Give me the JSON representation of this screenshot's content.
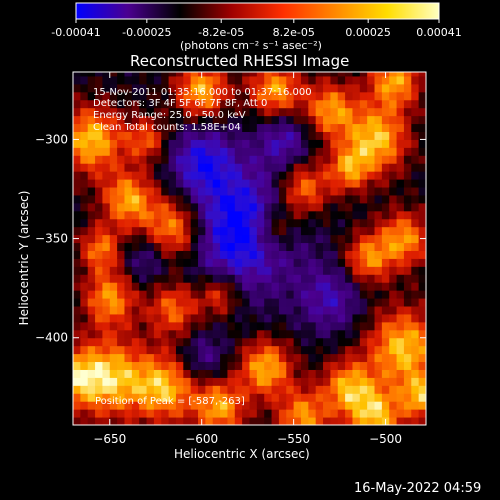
{
  "colorbar": {
    "tick_labels": [
      "-0.00041",
      "-0.00025",
      "-8.2e-05",
      "8.2e-05",
      "0.00025",
      "0.00041"
    ],
    "tick_values": [
      -0.00041,
      -0.00025,
      -8.2e-05,
      8.2e-05,
      0.00025,
      0.00041
    ],
    "range": [
      -0.00041,
      0.00041
    ],
    "units_label": "(photons cm⁻² s⁻¹ asec⁻²)",
    "gradient_colors": [
      "#0000ff",
      "#4b0090",
      "#000000",
      "#a00000",
      "#ff3000",
      "#ff8800",
      "#ffdd00",
      "#ffffc0"
    ]
  },
  "chart_data": {
    "type": "heatmap",
    "title": "Reconstructed RHESSI Image",
    "xlabel": "Heliocentric X (arcsec)",
    "ylabel": "Heliocentric Y (arcsec)",
    "xlim": [
      -670,
      -478
    ],
    "ylim": [
      -444,
      -266
    ],
    "xticks": [
      -650,
      -600,
      -550,
      -500
    ],
    "yticks": [
      -300,
      -350,
      -400
    ],
    "xtick_labels": [
      "−650",
      "−600",
      "−550",
      "−500"
    ],
    "ytick_labels": [
      "−300",
      "−350",
      "−400"
    ],
    "colorscale": [
      "#0000ff",
      "#3010d0",
      "#4b0090",
      "#300060",
      "#000000",
      "#8a0000",
      "#e02000",
      "#ff7000",
      "#ffc000",
      "#ffffd0"
    ],
    "peak_position": [
      -587,
      -263
    ],
    "annotations": [
      "15-Nov-2011 01:35:16.000 to 01:37:16.000",
      "Detectors: 3F 4F 5F 6F 7F 8F, Att 0",
      "Energy Range: 25.0 - 50.0 keV",
      "Clean    Total counts: 1.58E+04",
      "Position of Peak = [-587,-263]"
    ]
  },
  "timestamp": "16-May-2022 04:59"
}
